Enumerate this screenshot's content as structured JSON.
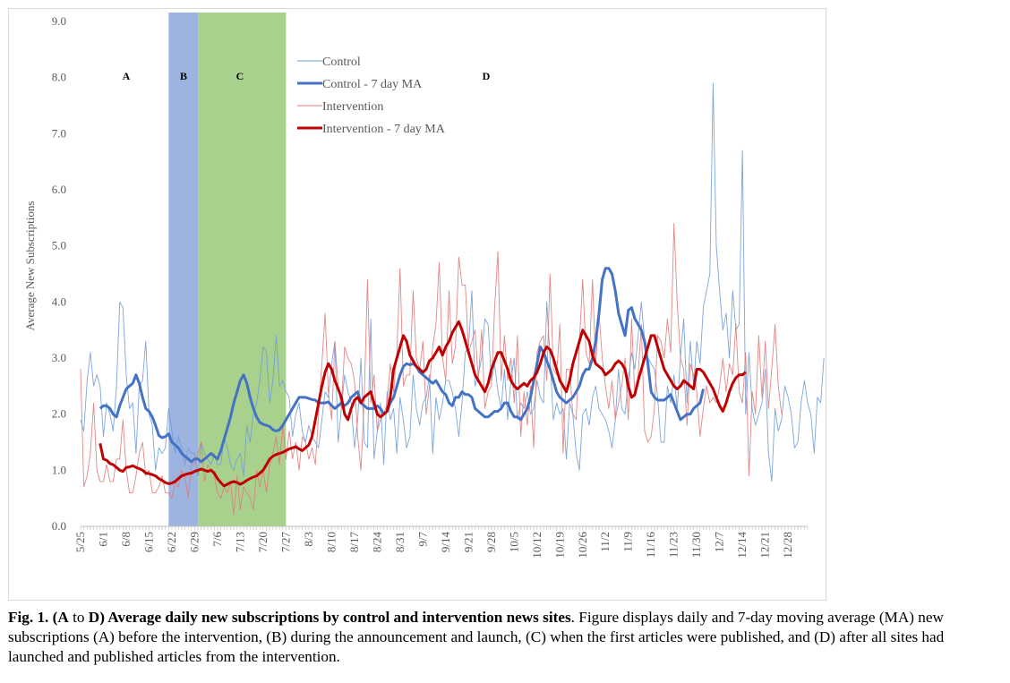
{
  "chart_data": {
    "type": "line",
    "title": "",
    "xlabel": "",
    "ylabel": "Average New Subscriptions",
    "ylim": [
      0,
      9
    ],
    "yticks": [
      "0.0",
      "1.0",
      "2.0",
      "3.0",
      "4.0",
      "5.0",
      "6.0",
      "7.0",
      "8.0",
      "9.0"
    ],
    "x_tick_labels": [
      "5/25",
      "6/1",
      "6/8",
      "6/15",
      "6/22",
      "6/29",
      "7/6",
      "7/13",
      "7/20",
      "7/27",
      "8/3",
      "8/10",
      "8/17",
      "8/24",
      "8/31",
      "9/7",
      "9/14",
      "9/21",
      "9/28",
      "10/5",
      "10/12",
      "10/19",
      "10/26",
      "11/2",
      "11/9",
      "11/16",
      "11/23",
      "11/30",
      "12/7",
      "12/14",
      "12/21",
      "12/28"
    ],
    "x_start": "5/25",
    "grid": false,
    "legend_position": "top-center",
    "phases": [
      {
        "label": "A",
        "start": "5/25",
        "end": "6/21",
        "color": null
      },
      {
        "label": "B",
        "start": "6/21",
        "end": "6/30",
        "color": "#9db3e0"
      },
      {
        "label": "C",
        "start": "6/30",
        "end": "7/27",
        "color": "#a9d18e"
      },
      {
        "label": "D",
        "start": "7/27",
        "end": "1/3",
        "color": null
      }
    ],
    "series": [
      {
        "name": "Control",
        "color": "#6f9bd8",
        "style": "thin",
        "values": [
          1.9,
          1.7,
          2.6,
          3.1,
          2.5,
          2.7,
          2.5,
          1.6,
          2.2,
          2.0,
          1.7,
          2.5,
          4.0,
          3.9,
          2.7,
          2.1,
          2.2,
          1.3,
          2.5,
          2.6,
          3.3,
          2.0,
          1.8,
          1.0,
          1.4,
          1.3,
          1.4,
          2.1,
          1.7,
          1.3,
          1.6,
          1.4,
          1.1,
          1.4,
          1.3,
          1.3,
          0.9,
          1.5,
          1.3,
          1.2,
          1.1,
          1.3,
          1.1,
          1.1,
          1.6,
          1.4,
          1.1,
          1.0,
          1.2,
          1.3,
          0.9,
          1.8,
          1.5,
          2.0,
          2.2,
          2.6,
          3.2,
          3.1,
          2.2,
          2.6,
          3.4,
          2.5,
          2.6,
          2.4,
          2.3,
          1.6,
          2.0,
          2.2,
          1.7,
          1.5,
          1.8,
          1.6,
          1.5,
          1.4,
          1.9,
          2.4,
          2.3,
          2.9,
          3.3,
          1.5,
          2.1,
          2.7,
          2.4,
          2.2,
          1.4,
          1.9,
          3.0,
          1.5,
          1.4,
          3.7,
          1.2,
          1.7,
          2.2,
          1.1,
          2.4,
          1.9,
          2.1,
          1.3,
          2.3,
          1.9,
          1.4,
          1.6,
          2.7,
          2.1,
          1.8,
          2.2,
          2.3,
          2.7,
          1.3,
          2.3,
          1.9,
          2.2,
          2.6,
          2.6,
          2.4,
          2.1,
          1.6,
          2.2,
          3.1,
          3.2,
          4.2,
          2.5,
          2.7,
          3.0,
          3.7,
          3.6,
          2.6,
          2.9,
          2.4,
          2.1,
          2.8,
          1.9,
          2.6,
          3.0,
          1.9,
          2.2,
          2.1,
          2.4,
          2.0,
          2.1,
          2.6,
          2.3,
          2.2,
          4.0,
          3.0,
          1.9,
          2.2,
          2.0,
          2.1,
          1.2,
          2.2,
          2.0,
          1.3,
          1.0,
          2.0,
          2.1,
          1.8,
          2.3,
          2.5,
          2.1,
          2.0,
          1.9,
          1.7,
          1.4,
          1.9,
          2.8,
          2.1,
          2.0,
          2.6,
          3.1,
          2.8,
          3.4,
          4.0,
          3.3,
          3.0,
          2.9,
          2.8,
          2.3,
          1.5,
          1.5,
          2.5,
          2.2,
          2.7,
          2.1,
          3.0,
          3.7,
          2.2,
          3.3,
          2.5,
          3.3,
          2.9,
          3.9,
          4.2,
          4.5,
          7.9,
          5.0,
          4.2,
          3.5,
          3.8,
          3.0,
          4.2,
          3.5,
          3.6,
          6.7,
          2.0,
          3.1,
          2.1,
          1.8,
          2.0,
          2.2,
          2.8,
          1.3,
          0.8,
          2.1,
          1.7,
          1.9,
          2.5,
          2.3,
          2.0,
          1.4,
          1.5,
          2.2,
          2.6,
          2.2,
          2.0,
          1.3,
          2.3,
          2.2,
          3.0
        ]
      },
      {
        "name": "Control - 7 day MA",
        "color": "#4472c4",
        "style": "thick",
        "start_day": 6,
        "values": [
          2.1,
          2.15,
          2.15,
          2.1,
          2.0,
          1.95,
          2.15,
          2.3,
          2.45,
          2.5,
          2.55,
          2.7,
          2.55,
          2.3,
          2.1,
          2.05,
          1.95,
          1.8,
          1.62,
          1.58,
          1.6,
          1.65,
          1.5,
          1.45,
          1.4,
          1.3,
          1.25,
          1.2,
          1.15,
          1.2,
          1.2,
          1.15,
          1.2,
          1.25,
          1.3,
          1.25,
          1.2,
          1.35,
          1.55,
          1.75,
          1.95,
          2.2,
          2.4,
          2.6,
          2.7,
          2.55,
          2.3,
          2.1,
          1.95,
          1.85,
          1.82,
          1.8,
          1.78,
          1.72,
          1.7,
          1.72,
          1.8,
          1.9,
          2.0,
          2.1,
          2.2,
          2.3,
          2.3,
          2.3,
          2.28,
          2.26,
          2.25,
          2.2,
          2.2,
          2.2,
          2.22,
          2.15,
          2.1,
          2.15,
          2.2,
          2.15,
          2.2,
          2.3,
          2.35,
          2.4,
          2.2,
          2.15,
          2.1,
          2.1,
          2.1,
          2.15,
          2.1,
          2.0,
          2.05,
          2.2,
          2.3,
          2.5,
          2.7,
          2.85,
          2.9,
          2.88,
          2.9,
          2.85,
          2.75,
          2.7,
          2.65,
          2.6,
          2.55,
          2.6,
          2.5,
          2.4,
          2.35,
          2.2,
          2.15,
          2.3,
          2.3,
          2.4,
          2.35,
          2.35,
          2.3,
          2.1,
          2.05,
          2.0,
          1.95,
          1.95,
          2.0,
          2.05,
          2.05,
          2.1,
          2.2,
          2.2,
          2.05,
          1.95,
          1.95,
          1.9,
          2.0,
          2.1,
          2.3,
          2.6,
          2.9,
          3.2,
          3.1,
          2.95,
          2.8,
          2.6,
          2.4,
          2.3,
          2.25,
          2.2,
          2.25,
          2.3,
          2.4,
          2.5,
          2.7,
          2.8,
          2.8,
          3.0,
          3.3,
          3.8,
          4.4,
          4.6,
          4.6,
          4.5,
          4.2,
          3.8,
          3.6,
          3.4,
          3.85,
          3.9,
          3.7,
          3.6,
          3.5,
          3.3,
          2.9,
          2.4,
          2.3,
          2.25,
          2.25,
          2.25,
          2.3,
          2.35,
          2.2,
          2.05,
          1.9,
          1.95,
          2.0,
          2.0,
          2.1,
          2.15,
          2.2,
          2.45
        ]
      },
      {
        "name": "Intervention",
        "color": "#e07a7a",
        "style": "thin",
        "values": [
          2.8,
          0.7,
          0.9,
          1.3,
          2.2,
          1.0,
          0.8,
          0.8,
          1.1,
          0.8,
          0.8,
          1.2,
          1.2,
          1.9,
          1.0,
          0.6,
          0.6,
          0.9,
          1.3,
          1.5,
          0.9,
          1.0,
          0.6,
          0.6,
          0.7,
          0.9,
          0.6,
          0.6,
          0.5,
          0.8,
          0.7,
          1.0,
          0.9,
          0.5,
          1.1,
          1.1,
          1.3,
          1.5,
          0.8,
          1.1,
          1.0,
          0.9,
          0.6,
          0.5,
          0.7,
          0.6,
          0.8,
          0.2,
          0.9,
          0.3,
          0.7,
          0.6,
          0.5,
          0.3,
          1.0,
          0.7,
          1.0,
          0.6,
          1.1,
          1.3,
          1.6,
          1.1,
          1.8,
          1.2,
          1.7,
          1.2,
          1.5,
          1.0,
          1.6,
          1.5,
          1.2,
          1.4,
          1.1,
          2.0,
          2.9,
          3.8,
          2.4,
          1.9,
          3.3,
          2.5,
          2.1,
          3.2,
          3.0,
          2.9,
          2.6,
          1.6,
          1.0,
          2.3,
          4.4,
          2.2,
          2.7,
          1.7,
          1.9,
          2.0,
          2.2,
          2.9,
          2.4,
          3.1,
          4.6,
          2.5,
          2.7,
          2.7,
          4.2,
          3.0,
          2.8,
          3.3,
          2.0,
          2.5,
          3.2,
          3.6,
          4.7,
          3.0,
          2.6,
          4.2,
          2.9,
          3.2,
          4.8,
          4.3,
          4.3,
          3.1,
          3.3,
          3.5,
          2.6,
          3.5,
          2.1,
          2.4,
          2.5,
          3.9,
          4.9,
          2.6,
          3.4,
          2.6,
          3.0,
          2.2,
          3.4,
          1.6,
          2.4,
          1.8,
          2.5,
          1.4,
          3.1,
          3.3,
          3.4,
          2.6,
          4.5,
          2.8,
          2.7,
          3.6,
          1.3,
          2.8,
          2.8,
          2.0,
          1.9,
          3.3,
          4.4,
          3.1,
          2.9,
          4.4,
          2.9,
          3.8,
          3.0,
          2.5,
          2.1,
          2.6,
          1.9,
          2.2,
          2.5,
          3.0,
          1.9,
          3.7,
          2.3,
          2.7,
          3.6,
          1.7,
          1.5,
          1.6,
          2.1,
          3.4,
          3.3,
          3.0,
          3.7,
          3.1,
          5.4,
          4.0,
          3.0,
          2.8,
          1.8,
          2.9,
          2.7,
          2.4,
          1.6,
          2.1,
          2.5,
          2.2,
          2.3,
          2.2,
          2.5,
          3.0,
          2.4,
          2.9,
          2.7,
          3.6,
          2.4,
          2.2,
          3.1,
          0.9,
          2.4,
          2.0,
          3.4,
          2.3,
          3.3,
          2.1,
          2.8,
          3.6,
          2.5,
          2.0
        ]
      },
      {
        "name": "Intervention - 7 day MA",
        "color": "#c00000",
        "style": "thick",
        "start_day": 6,
        "values": [
          1.48,
          1.2,
          1.18,
          1.12,
          1.1,
          1.05,
          1.0,
          0.98,
          1.05,
          1.06,
          1.08,
          1.05,
          1.03,
          1.0,
          0.95,
          0.94,
          0.92,
          0.9,
          0.85,
          0.82,
          0.78,
          0.76,
          0.77,
          0.8,
          0.85,
          0.9,
          0.92,
          0.94,
          0.95,
          0.98,
          1.0,
          1.02,
          1.0,
          0.98,
          1.0,
          0.95,
          0.85,
          0.78,
          0.72,
          0.75,
          0.78,
          0.8,
          0.78,
          0.75,
          0.78,
          0.82,
          0.85,
          0.88,
          0.9,
          0.95,
          1.0,
          1.1,
          1.2,
          1.25,
          1.28,
          1.3,
          1.32,
          1.35,
          1.38,
          1.4,
          1.42,
          1.38,
          1.35,
          1.4,
          1.45,
          1.6,
          1.9,
          2.2,
          2.5,
          2.75,
          2.9,
          2.8,
          2.6,
          2.45,
          2.3,
          2.0,
          1.9,
          2.1,
          2.25,
          2.3,
          2.2,
          2.3,
          2.35,
          2.4,
          2.2,
          2.0,
          1.95,
          2.0,
          2.05,
          2.3,
          2.8,
          3.0,
          3.2,
          3.4,
          3.3,
          3.05,
          2.95,
          2.85,
          2.8,
          2.75,
          2.8,
          2.95,
          3.0,
          3.1,
          3.2,
          3.05,
          3.2,
          3.3,
          3.45,
          3.55,
          3.65,
          3.5,
          3.3,
          3.1,
          2.9,
          2.7,
          2.6,
          2.5,
          2.4,
          2.55,
          2.8,
          2.95,
          3.1,
          3.1,
          2.95,
          2.8,
          2.6,
          2.5,
          2.45,
          2.5,
          2.55,
          2.5,
          2.6,
          2.65,
          2.75,
          2.9,
          3.1,
          3.2,
          3.15,
          3.0,
          2.8,
          2.6,
          2.5,
          2.4,
          2.6,
          2.9,
          3.1,
          3.3,
          3.5,
          3.4,
          3.3,
          3.05,
          2.9,
          2.85,
          2.8,
          2.7,
          2.75,
          2.8,
          2.9,
          2.95,
          2.9,
          2.8,
          2.5,
          2.3,
          2.35,
          2.6,
          2.8,
          3.0,
          3.2,
          3.4,
          3.4,
          3.2,
          3.0,
          2.8,
          2.7,
          2.6,
          2.5,
          2.45,
          2.5,
          2.6,
          2.55,
          2.5,
          2.45,
          2.8,
          2.8,
          2.75,
          2.65,
          2.55,
          2.45,
          2.3,
          2.15,
          2.05,
          2.2,
          2.4,
          2.55,
          2.65,
          2.7,
          2.7,
          2.75
        ]
      }
    ]
  },
  "caption": {
    "fig_label": "Fig. 1.",
    "paren_open": " (",
    "label_a": "A",
    "to_word": " to ",
    "label_d": "D",
    "bold_rest": ") Average daily new subscriptions by control and intervention news sites",
    "body": ". Figure displays daily and 7-day moving average (MA) new subscriptions (A) before the intervention, (B) during the announcement and launch, (C) when the first articles were published, and (D) after all sites had launched and published articles from the intervention."
  }
}
